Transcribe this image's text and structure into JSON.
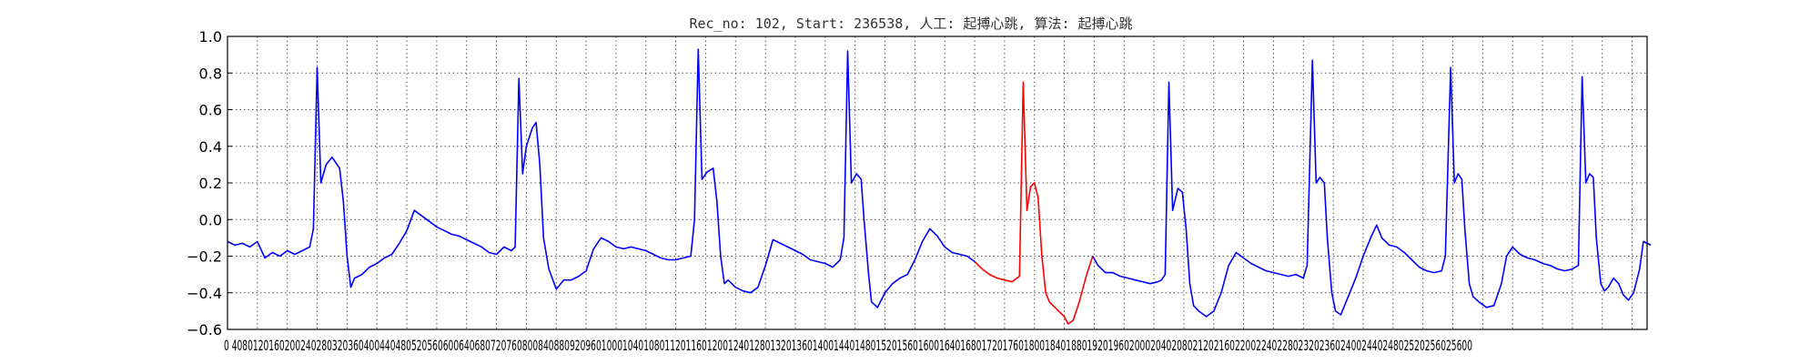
{
  "chart_data": {
    "type": "line",
    "title": "Rec_no: 102, Start: 236538, 人工: 起搏心跳, 算法: 起搏心跳",
    "xlabel": "",
    "ylabel": "",
    "xlim": [
      0,
      1900
    ],
    "ylim": [
      -0.6,
      1.0
    ],
    "grid": true,
    "yticks": [
      "1.0",
      "0.8",
      "0.6",
      "0.4",
      "0.2",
      "0.0",
      "−0.2",
      "−0.4",
      "−0.6"
    ],
    "xtick_text": "0 4080120160200240280320360400440480520560600640680720760800840880920960100010401080112011601200124012801320136014001440148015201560160016401680172017601800184018801920196020002040208021202160220022402280232023602400244024802520256025600",
    "series": [
      {
        "color": "#0000ff",
        "points": [
          [
            0,
            -0.12
          ],
          [
            10,
            -0.14
          ],
          [
            20,
            -0.13
          ],
          [
            30,
            -0.15
          ],
          [
            40,
            -0.12
          ],
          [
            50,
            -0.21
          ],
          [
            60,
            -0.18
          ],
          [
            70,
            -0.2
          ],
          [
            80,
            -0.17
          ],
          [
            90,
            -0.19
          ],
          [
            100,
            -0.17
          ],
          [
            110,
            -0.15
          ],
          [
            115,
            -0.05
          ],
          [
            120,
            0.83
          ],
          [
            125,
            0.2
          ],
          [
            132,
            0.3
          ],
          [
            140,
            0.34
          ],
          [
            150,
            0.28
          ],
          [
            155,
            0.1
          ],
          [
            160,
            -0.2
          ],
          [
            165,
            -0.37
          ],
          [
            170,
            -0.32
          ],
          [
            180,
            -0.3
          ],
          [
            190,
            -0.26
          ],
          [
            200,
            -0.24
          ],
          [
            210,
            -0.21
          ],
          [
            220,
            -0.19
          ],
          [
            230,
            -0.13
          ],
          [
            240,
            -0.06
          ],
          [
            250,
            0.05
          ],
          [
            260,
            0.02
          ],
          [
            270,
            -0.01
          ],
          [
            280,
            -0.04
          ],
          [
            290,
            -0.06
          ],
          [
            300,
            -0.08
          ],
          [
            310,
            -0.09
          ],
          [
            320,
            -0.11
          ],
          [
            330,
            -0.13
          ],
          [
            340,
            -0.15
          ],
          [
            350,
            -0.18
          ],
          [
            360,
            -0.19
          ],
          [
            370,
            -0.15
          ],
          [
            380,
            -0.17
          ],
          [
            385,
            -0.15
          ],
          [
            390,
            0.77
          ],
          [
            395,
            0.25
          ],
          [
            400,
            0.4
          ],
          [
            408,
            0.5
          ],
          [
            413,
            0.53
          ],
          [
            418,
            0.3
          ],
          [
            423,
            -0.1
          ],
          [
            430,
            -0.27
          ],
          [
            440,
            -0.38
          ],
          [
            450,
            -0.33
          ],
          [
            460,
            -0.33
          ],
          [
            470,
            -0.31
          ],
          [
            480,
            -0.28
          ],
          [
            490,
            -0.16
          ],
          [
            500,
            -0.1
          ],
          [
            510,
            -0.12
          ],
          [
            520,
            -0.15
          ],
          [
            530,
            -0.16
          ],
          [
            540,
            -0.15
          ],
          [
            550,
            -0.16
          ],
          [
            560,
            -0.17
          ],
          [
            570,
            -0.19
          ],
          [
            580,
            -0.21
          ],
          [
            590,
            -0.22
          ],
          [
            600,
            -0.22
          ],
          [
            610,
            -0.21
          ],
          [
            620,
            -0.2
          ],
          [
            625,
            0.0
          ],
          [
            630,
            0.93
          ],
          [
            635,
            0.22
          ],
          [
            642,
            0.26
          ],
          [
            650,
            0.28
          ],
          [
            655,
            0.1
          ],
          [
            660,
            -0.2
          ],
          [
            665,
            -0.35
          ],
          [
            670,
            -0.33
          ],
          [
            680,
            -0.37
          ],
          [
            690,
            -0.39
          ],
          [
            700,
            -0.4
          ],
          [
            710,
            -0.37
          ],
          [
            720,
            -0.25
          ],
          [
            730,
            -0.11
          ],
          [
            740,
            -0.13
          ],
          [
            750,
            -0.15
          ],
          [
            760,
            -0.17
          ],
          [
            770,
            -0.19
          ],
          [
            780,
            -0.22
          ],
          [
            790,
            -0.23
          ],
          [
            800,
            -0.24
          ],
          [
            810,
            -0.26
          ],
          [
            820,
            -0.22
          ],
          [
            825,
            -0.1
          ],
          [
            830,
            0.92
          ],
          [
            835,
            0.2
          ],
          [
            842,
            0.25
          ],
          [
            848,
            0.22
          ],
          [
            852,
            0.0
          ],
          [
            858,
            -0.3
          ],
          [
            862,
            -0.45
          ],
          [
            870,
            -0.48
          ],
          [
            880,
            -0.4
          ],
          [
            890,
            -0.35
          ],
          [
            900,
            -0.32
          ],
          [
            910,
            -0.3
          ],
          [
            920,
            -0.22
          ],
          [
            930,
            -0.12
          ],
          [
            940,
            -0.05
          ],
          [
            950,
            -0.09
          ],
          [
            960,
            -0.15
          ],
          [
            970,
            -0.18
          ],
          [
            980,
            -0.19
          ],
          [
            990,
            -0.2
          ],
          [
            1000,
            -0.23
          ]
        ]
      },
      {
        "color": "#ff0000",
        "points": [
          [
            1000,
            -0.23
          ],
          [
            1010,
            -0.27
          ],
          [
            1020,
            -0.3
          ],
          [
            1030,
            -0.32
          ],
          [
            1040,
            -0.33
          ],
          [
            1050,
            -0.34
          ],
          [
            1060,
            -0.31
          ],
          [
            1065,
            0.75
          ],
          [
            1070,
            0.05
          ],
          [
            1075,
            0.18
          ],
          [
            1080,
            0.2
          ],
          [
            1085,
            0.12
          ],
          [
            1090,
            -0.2
          ],
          [
            1095,
            -0.4
          ],
          [
            1100,
            -0.45
          ],
          [
            1110,
            -0.49
          ],
          [
            1120,
            -0.53
          ],
          [
            1125,
            -0.57
          ],
          [
            1132,
            -0.55
          ],
          [
            1140,
            -0.45
          ],
          [
            1150,
            -0.3
          ],
          [
            1158,
            -0.2
          ]
        ]
      },
      {
        "color": "#0000ff",
        "points": [
          [
            1158,
            -0.2
          ],
          [
            1165,
            -0.25
          ],
          [
            1175,
            -0.29
          ],
          [
            1185,
            -0.29
          ],
          [
            1195,
            -0.31
          ],
          [
            1205,
            -0.32
          ],
          [
            1215,
            -0.33
          ],
          [
            1225,
            -0.34
          ],
          [
            1235,
            -0.35
          ],
          [
            1245,
            -0.34
          ],
          [
            1250,
            -0.33
          ],
          [
            1255,
            -0.3
          ],
          [
            1260,
            0.75
          ],
          [
            1265,
            0.05
          ],
          [
            1272,
            0.17
          ],
          [
            1278,
            0.15
          ],
          [
            1283,
            -0.05
          ],
          [
            1288,
            -0.35
          ],
          [
            1293,
            -0.47
          ],
          [
            1300,
            -0.5
          ],
          [
            1310,
            -0.53
          ],
          [
            1320,
            -0.5
          ],
          [
            1330,
            -0.4
          ],
          [
            1340,
            -0.25
          ],
          [
            1350,
            -0.18
          ],
          [
            1360,
            -0.21
          ],
          [
            1370,
            -0.24
          ],
          [
            1380,
            -0.26
          ],
          [
            1390,
            -0.28
          ],
          [
            1400,
            -0.29
          ],
          [
            1410,
            -0.3
          ],
          [
            1420,
            -0.31
          ],
          [
            1430,
            -0.3
          ],
          [
            1440,
            -0.32
          ],
          [
            1445,
            -0.25
          ],
          [
            1452,
            0.87
          ],
          [
            1457,
            0.2
          ],
          [
            1462,
            0.23
          ],
          [
            1468,
            0.2
          ],
          [
            1472,
            -0.1
          ],
          [
            1478,
            -0.4
          ],
          [
            1483,
            -0.5
          ],
          [
            1490,
            -0.52
          ],
          [
            1500,
            -0.42
          ],
          [
            1510,
            -0.32
          ],
          [
            1520,
            -0.2
          ],
          [
            1530,
            -0.1
          ],
          [
            1538,
            -0.03
          ],
          [
            1545,
            -0.1
          ],
          [
            1555,
            -0.14
          ],
          [
            1565,
            -0.15
          ],
          [
            1575,
            -0.18
          ],
          [
            1585,
            -0.22
          ],
          [
            1595,
            -0.26
          ],
          [
            1605,
            -0.28
          ],
          [
            1615,
            -0.29
          ],
          [
            1625,
            -0.28
          ],
          [
            1630,
            -0.2
          ],
          [
            1637,
            0.83
          ],
          [
            1642,
            0.2
          ],
          [
            1647,
            0.25
          ],
          [
            1652,
            0.22
          ],
          [
            1656,
            -0.05
          ],
          [
            1662,
            -0.35
          ],
          [
            1667,
            -0.42
          ],
          [
            1675,
            -0.45
          ],
          [
            1685,
            -0.48
          ],
          [
            1695,
            -0.47
          ],
          [
            1705,
            -0.35
          ],
          [
            1712,
            -0.2
          ],
          [
            1720,
            -0.15
          ],
          [
            1730,
            -0.19
          ],
          [
            1740,
            -0.21
          ],
          [
            1750,
            -0.22
          ],
          [
            1760,
            -0.24
          ],
          [
            1770,
            -0.25
          ],
          [
            1780,
            -0.27
          ],
          [
            1790,
            -0.28
          ],
          [
            1800,
            -0.27
          ],
          [
            1808,
            -0.25
          ],
          [
            1813,
            0.78
          ],
          [
            1818,
            0.2
          ],
          [
            1823,
            0.25
          ],
          [
            1828,
            0.23
          ],
          [
            1832,
            -0.1
          ],
          [
            1838,
            -0.35
          ],
          [
            1843,
            -0.39
          ],
          [
            1848,
            -0.37
          ],
          [
            1855,
            -0.32
          ],
          [
            1862,
            -0.35
          ],
          [
            1868,
            -0.41
          ],
          [
            1875,
            -0.44
          ],
          [
            1882,
            -0.4
          ],
          [
            1890,
            -0.27
          ],
          [
            1895,
            -0.12
          ],
          [
            1900,
            -0.13
          ],
          [
            1905,
            -0.14
          ]
        ]
      }
    ]
  }
}
